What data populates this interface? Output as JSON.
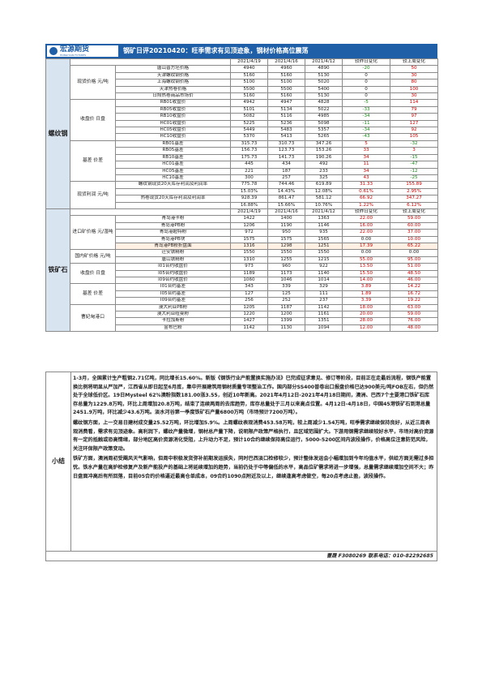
{
  "header": {
    "logo_text": "宏源期货",
    "logo_sub": "HONGYUAN FUTURES",
    "title": "钢矿日评20210420：旺季需求有见顶迹象，钢材价格高位震荡"
  },
  "rebar": {
    "section": "螺纹钢",
    "columns": [
      "",
      "2021/4/19",
      "2021/4/16",
      "2021/4/12",
      "较昨日变化",
      "较上周变化"
    ],
    "groups": [
      {
        "name": "现货价格 元/吨",
        "rows": [
          {
            "label": "唐山普方坯价格",
            "v1": "4940",
            "v2": "4960",
            "v3": "4890",
            "d1": "-20",
            "d2": "50"
          },
          {
            "label": "天津螺纹钢价格",
            "v1": "5160",
            "v2": "5160",
            "v3": "5130",
            "d1": "0",
            "d2": "30"
          },
          {
            "label": "上海螺纹钢价格",
            "v1": "5100",
            "v2": "5100",
            "v3": "5020",
            "d1": "0",
            "d2": "80"
          },
          {
            "label": "天津热卷价格",
            "v1": "5500",
            "v2": "5500",
            "v3": "5400",
            "d1": "0",
            "d2": "100"
          },
          {
            "label": "日照热卷商品市场价",
            "v1": "5160",
            "v2": "5160",
            "v3": "5130",
            "d1": "0",
            "d2": "30"
          }
        ]
      },
      {
        "name": "收盘价 日盘",
        "rows": [
          {
            "label": "RB01收盘价",
            "v1": "4942",
            "v2": "4947",
            "v3": "4828",
            "d1": "-5",
            "d2": "114"
          },
          {
            "label": "RB05收盘价",
            "v1": "5101",
            "v2": "5134",
            "v3": "5022",
            "d1": "-33",
            "d2": "79"
          },
          {
            "label": "RB10收盘价",
            "v1": "5082",
            "v2": "5116",
            "v3": "4985",
            "d1": "-34",
            "d2": "97"
          },
          {
            "label": "HC01收盘价",
            "v1": "5225",
            "v2": "5236",
            "v3": "5098",
            "d1": "-11",
            "d2": "127"
          },
          {
            "label": "HC05收盘价",
            "v1": "5449",
            "v2": "5483",
            "v3": "5357",
            "d1": "-34",
            "d2": "92"
          },
          {
            "label": "HC10收盘价",
            "v1": "5370",
            "v2": "5413",
            "v3": "5265",
            "d1": "-43",
            "d2": "105"
          }
        ]
      },
      {
        "name": "基差 价差",
        "rows": [
          {
            "label": "RB01基差",
            "v1": "315.73",
            "v2": "310.73",
            "v3": "347.26",
            "d1": "5",
            "d2": "-32"
          },
          {
            "label": "RB05基差",
            "v1": "156.73",
            "v2": "123.73",
            "v3": "153.26",
            "d1": "33",
            "d2": "3"
          },
          {
            "label": "RB10基差",
            "v1": "175.73",
            "v2": "141.73",
            "v3": "190.26",
            "d1": "34",
            "d2": "-15"
          },
          {
            "label": "HC01基差",
            "v1": "445",
            "v2": "434",
            "v3": "492",
            "d1": "11",
            "d2": "-47"
          },
          {
            "label": "HC05基差",
            "v1": "221",
            "v2": "187",
            "v3": "233",
            "d1": "34",
            "d2": "-12"
          },
          {
            "label": "HC10基差",
            "v1": "300",
            "v2": "257",
            "v3": "325",
            "d1": "43",
            "d2": "-25"
          }
        ]
      },
      {
        "name": "现货利润 元/吨",
        "rows": [
          {
            "label": "螺纹钢现货20天库存利润及利润率",
            "v1": "775.78",
            "v2": "744.46",
            "v3": "619.89",
            "d1": "31.33",
            "d2": "155.89"
          },
          {
            "label": "",
            "v1": "15.03%",
            "v2": "14.43%",
            "v3": "12.08%",
            "d1": "0.61%",
            "d2": "2.95%"
          },
          {
            "label": "热卷现货20天库存利润及利润率",
            "v1": "928.39",
            "v2": "861.47",
            "v3": "581.12",
            "d1": "66.92",
            "d2": "347.27"
          },
          {
            "label": "",
            "v1": "16.88%",
            "v2": "15.66%",
            "v3": "10.76%",
            "d1": "1.22%",
            "d2": "6.12%"
          }
        ]
      }
    ]
  },
  "ore": {
    "section": "铁矿石",
    "columns": [
      "",
      "2021/4/19",
      "2021/4/16",
      "2021/4/12",
      "较昨日变化",
      "较上周变化"
    ],
    "groups": [
      {
        "name": "进口矿价格 元/湿吨",
        "rows": [
          {
            "label": "青岛港卡粉",
            "v1": "1422",
            "v2": "1400",
            "v3": "1363",
            "d1": "22.00",
            "d2": "59.00"
          },
          {
            "label": "青岛港PB粉",
            "v1": "1206",
            "v2": "1190",
            "v3": "1146",
            "d1": "16.00",
            "d2": "60.00"
          },
          {
            "label": "青岛港超特粉",
            "v1": "972",
            "v2": "950",
            "v3": "935",
            "d1": "22.00",
            "d2": "37.00"
          },
          {
            "label": "青岛港PB块",
            "v1": "1575",
            "v2": "1575",
            "v3": "1565",
            "d1": "0.00",
            "d2": "10.00"
          },
          {
            "label": "青岛港PB粉折盘面",
            "v1": "1316",
            "v2": "1298",
            "v3": "1251",
            "d1": "17.39",
            "d2": "65.22"
          }
        ]
      },
      {
        "name": "国内矿价格 元/吨",
        "rows": [
          {
            "label": "迁安铁精粉",
            "v1": "1550",
            "v2": "1550",
            "v3": "1550",
            "d1": "0.00",
            "d2": "0.00"
          },
          {
            "label": "唐山铁精粉",
            "v1": "1310",
            "v2": "1255",
            "v3": "1215",
            "d1": "55.00",
            "d2": "95.00"
          }
        ]
      },
      {
        "name": "收盘价 日盘",
        "rows": [
          {
            "label": "I01合约收盘价",
            "v1": "973",
            "v2": "960",
            "v3": "922",
            "d1": "13.50",
            "d2": "51.00"
          },
          {
            "label": "I05合约收盘价",
            "v1": "1189",
            "v2": "1173",
            "v3": "1140",
            "d1": "15.50",
            "d2": "48.50"
          },
          {
            "label": "I09合约收盘价",
            "v1": "1060",
            "v2": "1046",
            "v3": "1014",
            "d1": "14.00",
            "d2": "46.00"
          }
        ]
      },
      {
        "name": "基差 价差",
        "rows": [
          {
            "label": "I01合约基差",
            "v1": "343",
            "v2": "339",
            "v3": "329",
            "d1": "3.89",
            "d2": "14.22"
          },
          {
            "label": "I05合约基差",
            "v1": "127",
            "v2": "125",
            "v3": "111",
            "d1": "1.89",
            "d2": "16.72"
          },
          {
            "label": "I09合约基差",
            "v1": "256",
            "v2": "252",
            "v3": "237",
            "d1": "3.39",
            "d2": "19.22"
          }
        ]
      },
      {
        "name": "曹妃甸港口",
        "rows": [
          {
            "label": "澳大利亚PB粉",
            "v1": "1205",
            "v2": "1187",
            "v3": "1142",
            "d1": "18.00",
            "d2": "63.00"
          },
          {
            "label": "澳大利亚纽曼粉",
            "v1": "1220",
            "v2": "1200",
            "v3": "1161",
            "d1": "20.00",
            "d2": "59.00"
          },
          {
            "label": "卡拉加斯粉",
            "v1": "1427",
            "v2": "1399",
            "v3": "1351",
            "d1": "28.00",
            "d2": "76.00"
          },
          {
            "label": "金布巴粉",
            "v1": "1142",
            "v2": "1130",
            "v3": "1094",
            "d1": "12.00",
            "d2": "48.00"
          }
        ]
      }
    ]
  },
  "summary": {
    "label": "小结",
    "paragraphs": [
      "1-3月，全国累计生产粗钢2.71亿吨，同比增长15.60%。新版《钢铁行业产能置换实施办法》已完成征求意见、修订等阶段，目前正在走最后流程，钢铁产能置换比例将明显从严加严，江西省从即日起至6月底，集中开展建筑用钢材质量专项整治工作。国内部分SS400普卷出口报盘价格已达900美元/吨FOB左右，但仍然处于全球低价区。19日Mysteel 62%澳粉指数181.00涨3.55，创近10年新高。2021年4月12日-2021年4月18日期间，澳洲、巴西7个主要港口铁矿石库存总量为1229.8万吨，环比上周增加20.8万吨，结束了连续两周的去库趋势，库存总量处于三月以来高点位置。4月12日-4月18日，中国45港铁矿石到港总量2451.9万吨，环比减少43.6万吨。淡水河谷第一季度铁矿石产量6800万吨（市场预计7200万吨）。",
      "螺纹钢方面，上一交易日建材成交量25.52万吨，环比增加5.9%。上周螺纹表观消费453.58万吨，较上周减少1.54万吨，旺季需求继续保持良好，从近三周表观消费看，需求有见顶迹象。高利润下，螺纹产量微增，钢材总产量下降，说明限产政策严格执行，且区域范围扩大。下游用钢需求继续较好水平，市场对高价资源有一定的抵触或恐高情绪，部分地区高价资源消化受阻，上升动力不足，预计10合约继续保持高位运行，5000-5200区间内波段操作，价格高位注意防范风险，关注环保限产政策变动。",
      "铁矿方面，澳洲周初受飓风天气影响，但周中积极发货弥补前期发运损失，同时巴西淡口检修较少，预计整体发运会小幅增加到今年均值水平，供给方面无需过多担忧。铁水产量在高炉检修复产及新产能投产的基础上将延续增加的趋势，当前仍处于中等偏低的水平，高品位矿需求将进一步增强，总量需求继续增加空间不大；昨日盘面冲高后有所回落，目前05合约价格逼近最高仓单成本，09合约1090点附近及以上，继续逢高考虑做空，每20点考虑止盈，波段操作。"
    ]
  },
  "footer": {
    "text": "曹晟  F3080269  联系电话：010-82292685"
  }
}
